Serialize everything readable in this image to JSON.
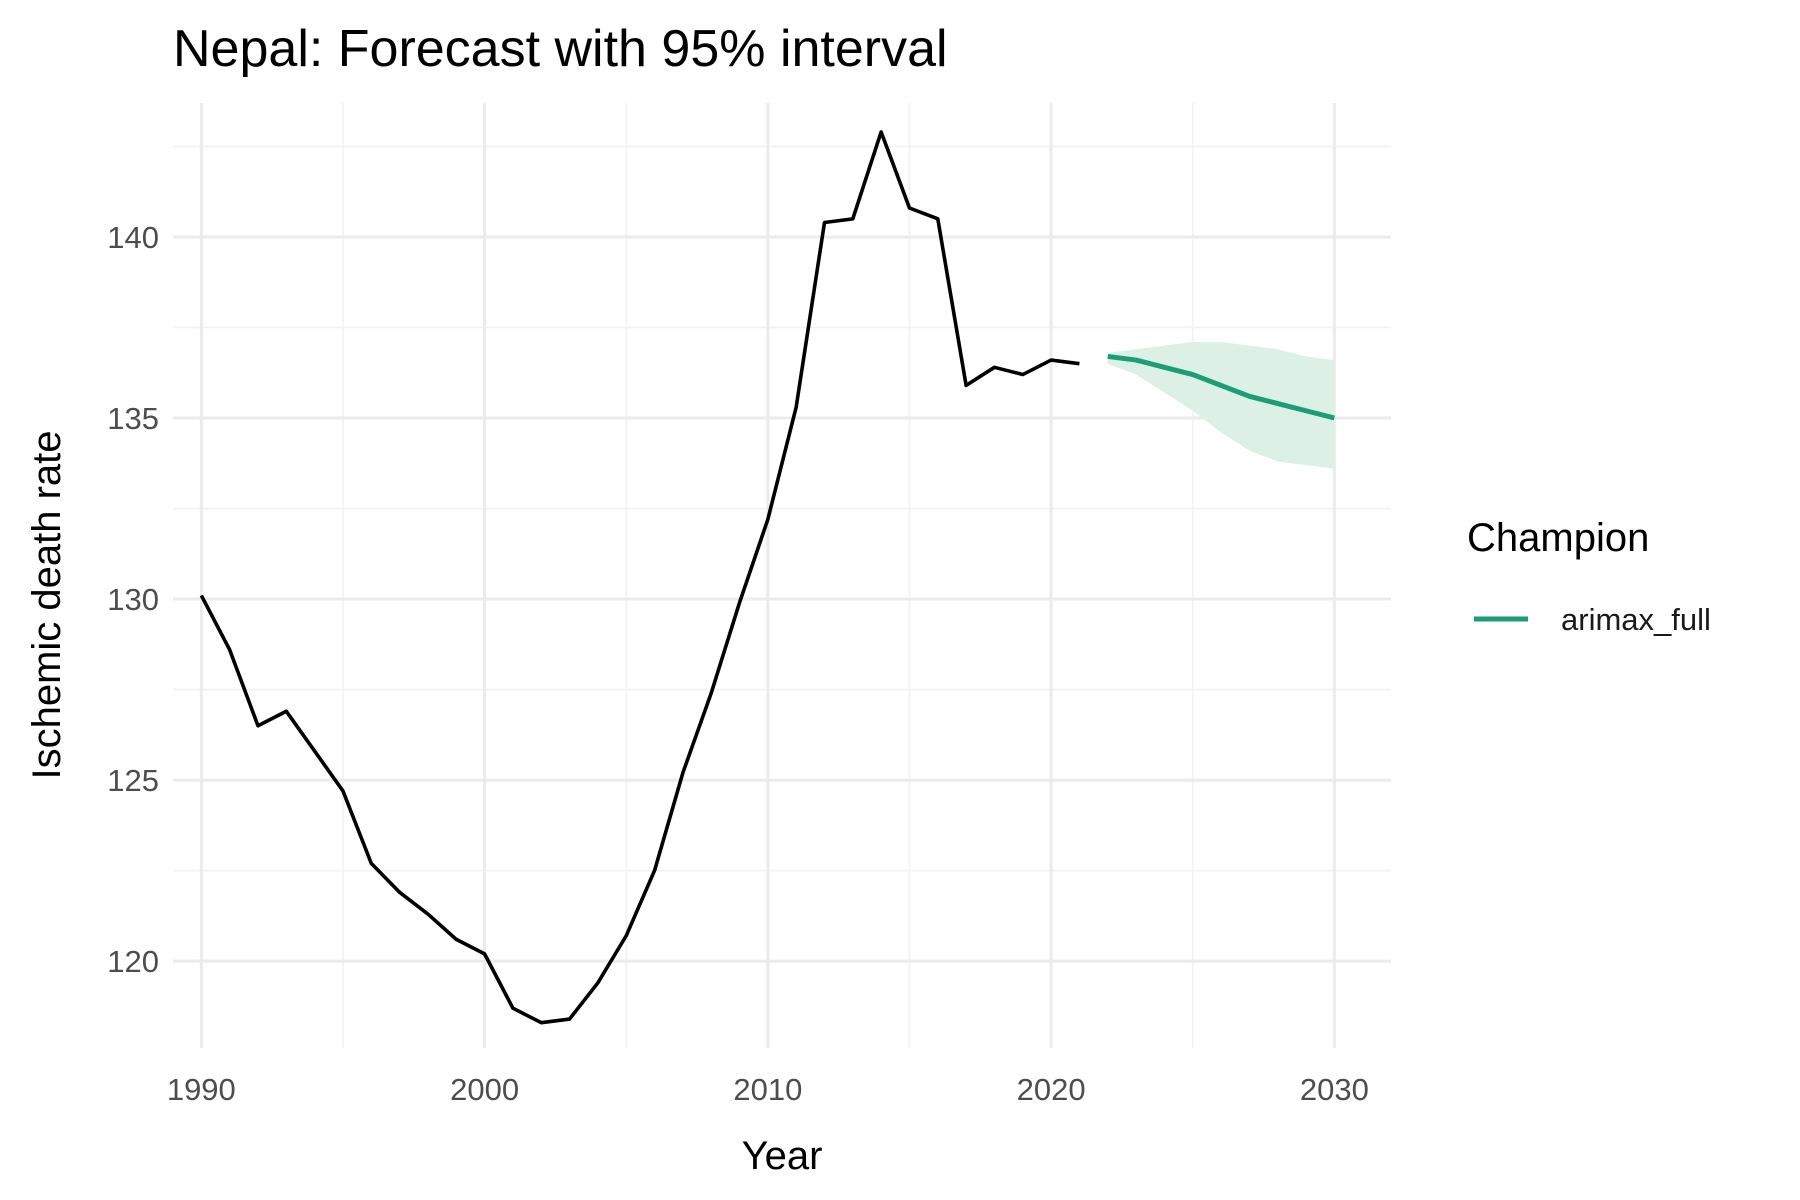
{
  "chart_data": {
    "type": "line",
    "title": "Nepal: Forecast with 95% interval",
    "xlabel": "Year",
    "ylabel": "Ischemic death rate",
    "xlim": [
      1989,
      2032
    ],
    "ylim": [
      117.6,
      143.7
    ],
    "x_ticks": [
      1990,
      2000,
      2010,
      2020,
      2030
    ],
    "y_ticks": [
      120,
      125,
      130,
      135,
      140
    ],
    "grid": true,
    "legend": {
      "title": "Champion",
      "placement": "right"
    },
    "series": [
      {
        "role": "history",
        "color": "#000000",
        "x": [
          1990,
          1991,
          1992,
          1993,
          1994,
          1995,
          1996,
          1997,
          1998,
          1999,
          2000,
          2001,
          2002,
          2003,
          2004,
          2005,
          2006,
          2007,
          2008,
          2009,
          2010,
          2011,
          2012,
          2013,
          2014,
          2015,
          2016,
          2017,
          2018,
          2019,
          2020,
          2021
        ],
        "values": [
          130.1,
          128.6,
          126.5,
          126.9,
          125.8,
          124.7,
          122.7,
          121.9,
          121.3,
          120.6,
          120.2,
          118.7,
          118.3,
          118.4,
          119.4,
          120.7,
          122.5,
          125.2,
          127.4,
          129.9,
          132.2,
          135.3,
          140.4,
          140.5,
          142.9,
          140.8,
          140.5,
          135.9,
          136.4,
          136.2,
          136.6,
          136.5
        ]
      },
      {
        "name": "arimax_full",
        "role": "forecast",
        "color": "#1b9e77",
        "x": [
          2022,
          2023,
          2024,
          2025,
          2026,
          2027,
          2028,
          2029,
          2030
        ],
        "values": [
          136.7,
          136.6,
          136.4,
          136.2,
          135.9,
          135.6,
          135.4,
          135.2,
          135.0
        ],
        "lower": [
          136.5,
          136.2,
          135.7,
          135.2,
          134.6,
          134.1,
          133.8,
          133.7,
          133.6
        ],
        "upper": [
          136.8,
          136.9,
          137.0,
          137.1,
          137.1,
          137.0,
          136.9,
          136.7,
          136.6
        ],
        "ribbon_color": "#dcf0e6"
      }
    ]
  }
}
